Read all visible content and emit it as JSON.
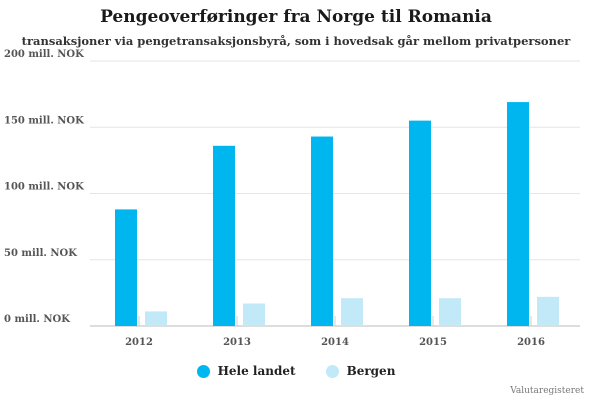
{
  "chart_data": {
    "type": "bar",
    "title": "Pengeoverføringer fra Norge til Romania",
    "subtitle": "transaksjoner via pengetransaksjonsbyrå, som i hovedsak går mellom privatpersoner",
    "categories": [
      "2012",
      "2013",
      "2014",
      "2015",
      "2016"
    ],
    "series": [
      {
        "name": "Hele landet",
        "values": [
          88,
          136,
          143,
          155,
          169
        ],
        "color": "#00b6ef"
      },
      {
        "name": "Bergen",
        "values": [
          11,
          17,
          21,
          21,
          22
        ],
        "color": "#c2e9f8"
      }
    ],
    "yticks": [
      "0 mill. NOK",
      "50 mill. NOK",
      "100 mill. NOK",
      "150 mill. NOK",
      "200 mill. NOK"
    ],
    "ylim": [
      0,
      200
    ],
    "grid": true,
    "legend": "bottom-center",
    "source": "Valutaregisteret"
  }
}
